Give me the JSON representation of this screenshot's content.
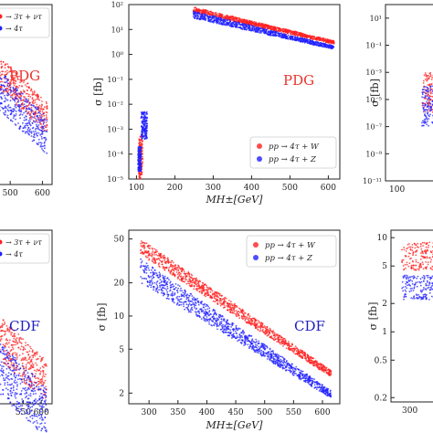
{
  "chart_data": [
    {
      "type": "scatter",
      "panel": "top-left (cropped)",
      "annotation": "PDG",
      "annotation_color": "#e8342c",
      "yscale": "linear",
      "xlim": [
        440,
        630
      ],
      "x_ticks": [
        "500",
        "600"
      ],
      "legend": {
        "entries": [
          "→ 3τ + ντ",
          "→ 4τ"
        ],
        "placement": "top-left"
      },
      "series": [
        {
          "color": "#ff2020",
          "band": {
            "x": [
              440,
              615
            ],
            "y": [
              0.58,
              0.76
            ]
          }
        },
        {
          "color": "#2020ff",
          "band": {
            "x": [
              440,
              615
            ],
            "y": [
              0.46,
              0.68
            ]
          }
        }
      ]
    },
    {
      "type": "scatter",
      "panel": "top-middle",
      "annotation": "PDG",
      "annotation_color": "#e8342c",
      "xlabel": "M_{H±}[GeV]",
      "ylabel": "σ [fb]",
      "yscale": "log",
      "xlim": [
        80,
        630
      ],
      "ylim": [
        1e-05,
        100
      ],
      "x_ticks": [
        "100",
        "200",
        "300",
        "400",
        "500",
        "600"
      ],
      "y_ticks": [
        "10⁻⁵",
        "10⁻⁴",
        "10⁻³",
        "10⁻²",
        "10⁻¹",
        "10⁰",
        "10¹",
        "10²"
      ],
      "legend": {
        "entries": [
          "pp → 4τ + W",
          "pp → 4τ + Z"
        ],
        "placement": "lower-right"
      },
      "series": [
        {
          "name": "pp → 4τ + W",
          "color": "#ff2020",
          "clusters": [
            {
              "x": [
                106,
                116
              ],
              "y": [
                1e-05,
                0.0006
              ]
            }
          ],
          "band": {
            "x": [
              248,
              615
            ],
            "y_start": [
              50,
              80
            ],
            "y_end": [
              2.6,
              3.5
            ]
          }
        },
        {
          "name": "pp → 4τ + Z",
          "color": "#2020ff",
          "clusters": [
            {
              "x": [
                112,
                128
              ],
              "y": [
                0.0004,
                0.005
              ]
            },
            {
              "x": [
                104,
                112
              ],
              "y": [
                2e-05,
                0.0002
              ]
            }
          ],
          "band": {
            "x": [
              248,
              615
            ],
            "y_start": [
              28,
              55
            ],
            "y_end": [
              1.6,
              2.2
            ]
          }
        }
      ]
    },
    {
      "type": "scatter",
      "panel": "top-right (cropped)",
      "yscale": "log",
      "ylim": [
        1e-11,
        100
      ],
      "x_ticks": [
        "100"
      ],
      "y_ticks": [
        "10⁻¹¹",
        "10⁻⁹",
        "10⁻⁷",
        "10⁻⁵",
        "10⁻³",
        "10⁻¹",
        "10¹"
      ],
      "ylabel": "σ [fb]",
      "series": [
        {
          "color": "#ff2020",
          "cluster": {
            "x": [
              100,
              130
            ],
            "y": [
              1e-06,
              0.001
            ]
          }
        },
        {
          "color": "#2020ff",
          "cluster": {
            "x": [
              100,
              130
            ],
            "y": [
              1e-07,
              0.0001
            ]
          }
        }
      ]
    },
    {
      "type": "scatter",
      "panel": "bottom-left (cropped)",
      "annotation": "CDF",
      "annotation_color": "#1f1fbf",
      "yscale": "linear",
      "xlim": [
        460,
        630
      ],
      "x_ticks": [
        "550",
        "600"
      ],
      "legend": {
        "entries": [
          "→ 3τ + ντ",
          "→ 4τ"
        ],
        "placement": "top-left"
      },
      "series": [
        {
          "color": "#ff2020",
          "band": {
            "x": [
              460,
              615
            ],
            "y": [
              0.3,
              0.55
            ]
          }
        },
        {
          "color": "#2020ff",
          "band": {
            "x": [
              460,
              615
            ],
            "y": [
              0.1,
              0.4
            ]
          }
        }
      ]
    },
    {
      "type": "scatter",
      "panel": "bottom-middle",
      "annotation": "CDF",
      "annotation_color": "#1f1fbf",
      "xlabel": "M_{H±}[GeV]",
      "ylabel": "σ [fb]",
      "yscale": "log",
      "xlim": [
        265,
        630
      ],
      "ylim": [
        1.6,
        60
      ],
      "x_ticks": [
        "300",
        "350",
        "400",
        "450",
        "500",
        "550",
        "600"
      ],
      "y_ticks": [
        "2",
        "5",
        "10",
        "20",
        "50"
      ],
      "legend": {
        "entries": [
          "pp → 4τ + W",
          "pp → 4τ + Z"
        ],
        "placement": "top-right"
      },
      "series": [
        {
          "name": "pp → 4τ + W",
          "color": "#ff2020",
          "band": {
            "x": [
              285,
              615
            ],
            "y_start": [
              36,
              50
            ],
            "y_end": [
              2.8,
              3.2
            ]
          }
        },
        {
          "name": "pp → 4τ + Z",
          "color": "#2020ff",
          "band": {
            "x": [
              285,
              615
            ],
            "y_start": [
              20,
              33
            ],
            "y_end": [
              1.8,
              2.1
            ]
          }
        }
      ]
    },
    {
      "type": "scatter",
      "panel": "bottom-right (cropped)",
      "yscale": "log",
      "ylim": [
        0.18,
        12
      ],
      "x_ticks": [
        "300"
      ],
      "y_ticks": [
        "0.2",
        "0.5",
        "1",
        "2",
        "5",
        "10"
      ],
      "ylabel": "σ [fb]",
      "series": [
        {
          "color": "#ff2020",
          "band": {
            "x": [
              290,
              330
            ],
            "y": [
              4.5,
              9
            ]
          }
        },
        {
          "color": "#2020ff",
          "band": {
            "x": [
              290,
              330
            ],
            "y": [
              2.2,
              4
            ]
          }
        }
      ]
    }
  ]
}
